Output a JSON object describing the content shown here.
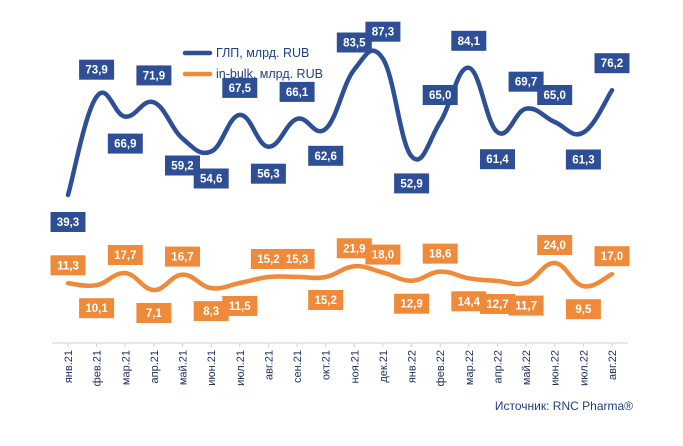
{
  "chart_data": {
    "type": "line",
    "title": "",
    "xlabel": "",
    "ylabel": "",
    "categories": [
      "янв.21",
      "фев.21",
      "мар.21",
      "апр.21",
      "май.21",
      "июн.21",
      "июл.21",
      "авг.21",
      "сен.21",
      "окт.21",
      "ноя.21",
      "дек.21",
      "янв.22",
      "фев.22",
      "мар.22",
      "апр.22",
      "май.22",
      "июн.22",
      "июл.22",
      "авг.22"
    ],
    "series": [
      {
        "name": "ГЛП, млрд. RUB",
        "color": "#2e4f95",
        "values": [
          39.3,
          73.9,
          66.9,
          71.9,
          59.2,
          54.6,
          67.5,
          56.3,
          66.1,
          62.6,
          83.5,
          87.3,
          52.9,
          65.0,
          84.1,
          61.4,
          69.7,
          65.0,
          61.3,
          76.2
        ],
        "labels": [
          "39,3",
          "73,9",
          "66,9",
          "71,9",
          "59,2",
          "54,6",
          "67,5",
          "56,3",
          "66,1",
          "62,6",
          "83,5",
          "87,3",
          "52,9",
          "65,0",
          "84,1",
          "61,4",
          "69,7",
          "65,0",
          "61,3",
          "76,2"
        ]
      },
      {
        "name": "in-bulk, млрд. RUB",
        "color": "#ee8a3a",
        "values": [
          11.3,
          10.1,
          17.7,
          7.1,
          16.7,
          8.3,
          11.5,
          15.2,
          15.3,
          15.2,
          21.9,
          18.0,
          12.9,
          18.6,
          14.4,
          12.7,
          11.7,
          24.0,
          9.5,
          17.0
        ],
        "labels": [
          "11,3",
          "10,1",
          "17,7",
          "7,1",
          "16,7",
          "8,3",
          "11,5",
          "15,2",
          "15,3",
          "15,2",
          "21,9",
          "18,0",
          "12,9",
          "18,6",
          "14,4",
          "12,7",
          "11,7",
          "24,0",
          "9,5",
          "17,0"
        ]
      }
    ],
    "legend": "top-center",
    "grid": false
  },
  "source": "Источник: RNC Pharma®"
}
